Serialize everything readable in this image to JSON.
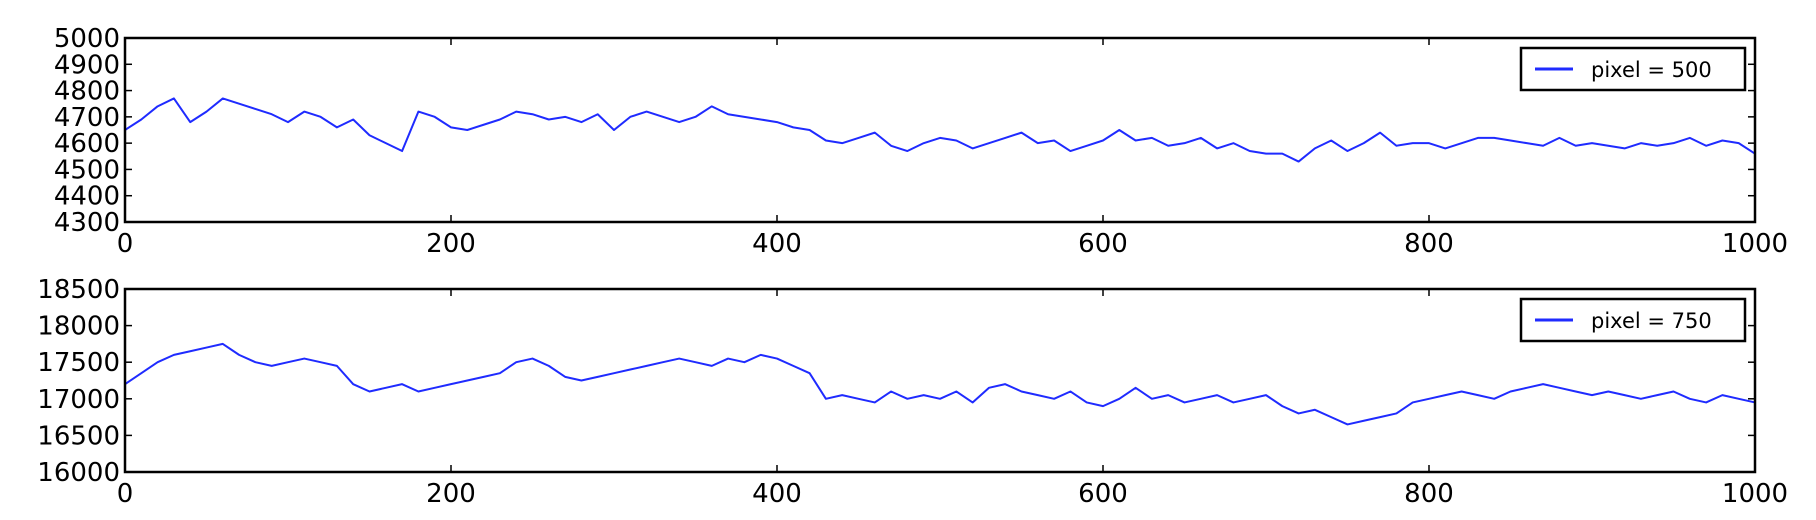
{
  "chart_data": [
    {
      "type": "line",
      "xlim": [
        0,
        1000
      ],
      "ylim": [
        4300,
        5000
      ],
      "x_ticks": [
        0,
        200,
        400,
        600,
        800,
        1000
      ],
      "y_ticks": [
        4300,
        4400,
        4500,
        4600,
        4700,
        4800,
        4900,
        5000
      ],
      "grid": false,
      "legend_position": "top-right",
      "series": [
        {
          "name": "pixel = 500",
          "color": "#1f2bff",
          "x_start": 0,
          "x_step": 10,
          "values": [
            4650,
            4690,
            4740,
            4770,
            4680,
            4720,
            4770,
            4750,
            4730,
            4710,
            4680,
            4720,
            4700,
            4660,
            4690,
            4630,
            4600,
            4570,
            4720,
            4700,
            4660,
            4650,
            4670,
            4690,
            4720,
            4710,
            4690,
            4700,
            4680,
            4710,
            4650,
            4700,
            4720,
            4700,
            4680,
            4700,
            4740,
            4710,
            4700,
            4690,
            4680,
            4660,
            4650,
            4610,
            4600,
            4620,
            4640,
            4590,
            4570,
            4600,
            4620,
            4610,
            4580,
            4600,
            4620,
            4640,
            4600,
            4610,
            4570,
            4590,
            4610,
            4650,
            4610,
            4620,
            4590,
            4600,
            4620,
            4580,
            4600,
            4570,
            4560,
            4560,
            4530,
            4580,
            4610,
            4570,
            4600,
            4640,
            4590,
            4600,
            4600,
            4580,
            4600,
            4620,
            4620,
            4610,
            4600,
            4590,
            4620,
            4590,
            4600,
            4590,
            4580,
            4600,
            4590,
            4600,
            4620,
            4590,
            4610,
            4600,
            4560
          ]
        }
      ]
    },
    {
      "type": "line",
      "xlim": [
        0,
        1000
      ],
      "ylim": [
        16000,
        18500
      ],
      "x_ticks": [
        0,
        200,
        400,
        600,
        800,
        1000
      ],
      "y_ticks": [
        16000,
        16500,
        17000,
        17500,
        18000,
        18500
      ],
      "grid": false,
      "legend_position": "top-right",
      "series": [
        {
          "name": "pixel = 750",
          "color": "#1f2bff",
          "x_start": 0,
          "x_step": 10,
          "values": [
            17200,
            17350,
            17500,
            17600,
            17650,
            17700,
            17750,
            17600,
            17500,
            17450,
            17500,
            17550,
            17500,
            17450,
            17200,
            17100,
            17150,
            17200,
            17100,
            17150,
            17200,
            17250,
            17300,
            17350,
            17500,
            17550,
            17450,
            17300,
            17250,
            17300,
            17350,
            17400,
            17450,
            17500,
            17550,
            17500,
            17450,
            17550,
            17500,
            17600,
            17550,
            17450,
            17350,
            17000,
            17050,
            17000,
            16950,
            17100,
            17000,
            17050,
            17000,
            17100,
            16950,
            17150,
            17200,
            17100,
            17050,
            17000,
            17100,
            16950,
            16900,
            17000,
            17150,
            17000,
            17050,
            16950,
            17000,
            17050,
            16950,
            17000,
            17050,
            16900,
            16800,
            16850,
            16750,
            16650,
            16700,
            16750,
            16800,
            16950,
            17000,
            17050,
            17100,
            17050,
            17000,
            17100,
            17150,
            17200,
            17150,
            17100,
            17050,
            17100,
            17050,
            17000,
            17050,
            17100,
            17000,
            16950,
            17050,
            17000,
            16950
          ]
        }
      ]
    }
  ]
}
